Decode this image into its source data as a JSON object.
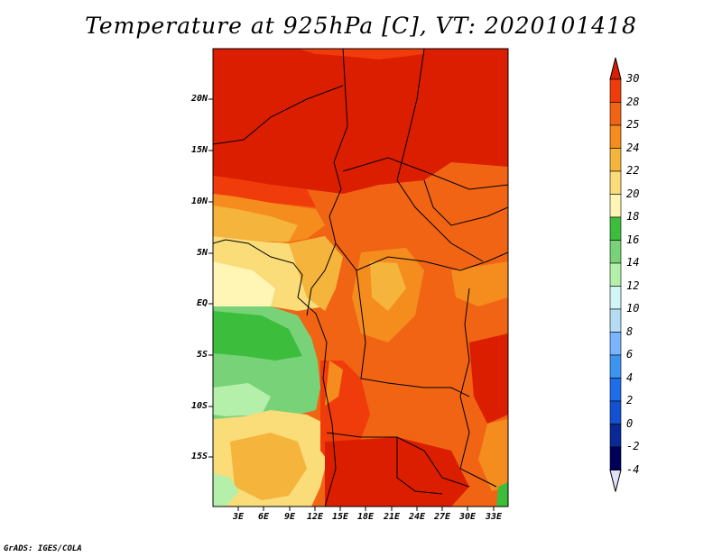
{
  "title": "Temperature at 925hPa [C], VT: 2020101418",
  "credit": "GrADS: IGES/COLA",
  "lat_labels": [
    "20N",
    "15N",
    "10N",
    "5N",
    "EQ",
    "5S",
    "10S",
    "15S"
  ],
  "lon_labels": [
    "3E",
    "6E",
    "9E",
    "12E",
    "15E",
    "18E",
    "21E",
    "24E",
    "27E",
    "30E",
    "33E"
  ],
  "colorbar": {
    "labels": [
      "30",
      "28",
      "25",
      "24",
      "22",
      "20",
      "18",
      "16",
      "14",
      "12",
      "10",
      "8",
      "6",
      "4",
      "2",
      "0",
      "-2",
      "-4"
    ],
    "colors": [
      "#dc1e00",
      "#f03c0a",
      "#f06414",
      "#f58c1e",
      "#f5b43c",
      "#fadc78",
      "#fff5b4",
      "#3cbe3c",
      "#78d278",
      "#b4f0aa",
      "#d2f5f5",
      "#b4dcf5",
      "#78b4ff",
      "#3c96f0",
      "#1e6eeb",
      "#1450d2",
      "#0a2896",
      "#00005a"
    ],
    "over_color": "#dc1e00",
    "under_color": "#e1e1fa"
  }
}
